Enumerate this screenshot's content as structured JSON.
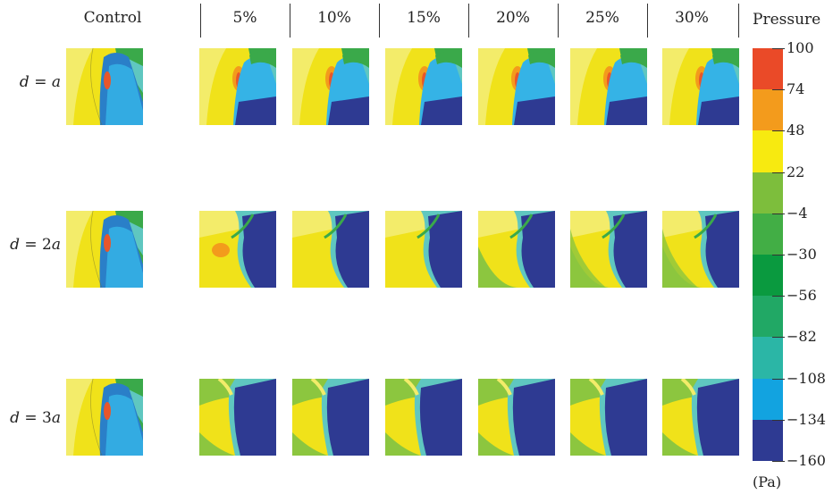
{
  "columns": [
    "Control",
    "5%",
    "10%",
    "15%",
    "20%",
    "25%",
    "30%"
  ],
  "rows": [
    {
      "prefix": "d",
      "eq": " = ",
      "value": "a"
    },
    {
      "prefix": "d",
      "eq": " = 2",
      "value": "a"
    },
    {
      "prefix": "d",
      "eq": " = 3",
      "value": "a"
    }
  ],
  "legend": {
    "title": "Pressure",
    "unit": "(Pa)",
    "ticks": [
      "100",
      "74",
      "48",
      "22",
      "−4",
      "−30",
      "−56",
      "−82",
      "−108",
      "−134",
      "−160"
    ],
    "colors": [
      "#ea4a28",
      "#f39b1c",
      "#f7ea10",
      "#7dbe3c",
      "#42ae45",
      "#0a9a3f",
      "#21a865",
      "#2bb6a6",
      "#12a3e0",
      "#2e3a92"
    ]
  },
  "palette": {
    "yellow": "#f0e21a",
    "yellow_light": "#f3ec6a",
    "green_light": "#8cc63f",
    "green": "#3aa94a",
    "teal": "#5fc7c0",
    "cyan": "#35b3e6",
    "blue": "#2a7fc8",
    "navy": "#2e3a92",
    "orange": "#f39b1c",
    "red": "#e8562a"
  }
}
